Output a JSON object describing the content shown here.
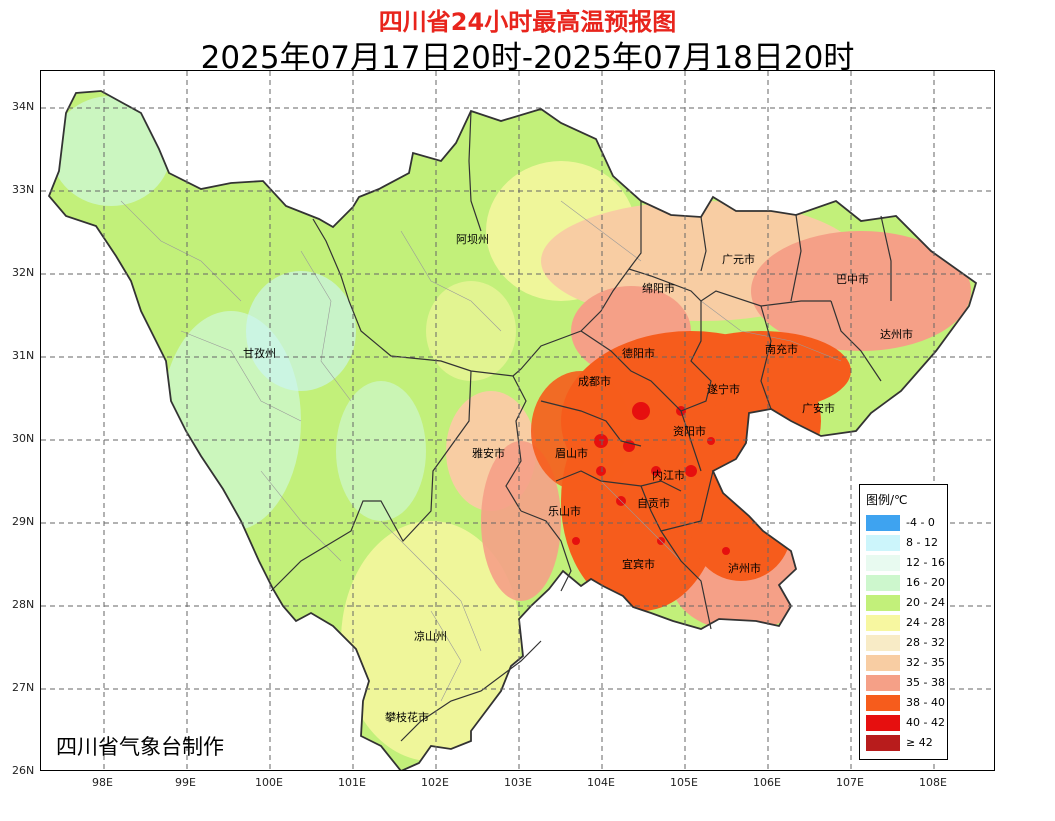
{
  "title": "四川省24小时最高温预报图",
  "subtitle": "2025年07月17日20时-2025年07月18日20时",
  "credit": "四川省气象台制作",
  "axes": {
    "lat_labels": [
      "34N",
      "33N",
      "32N",
      "31N",
      "30N",
      "29N",
      "28N",
      "27N",
      "26N"
    ],
    "lon_labels": [
      "98E",
      "99E",
      "100E",
      "101E",
      "102E",
      "103E",
      "104E",
      "105E",
      "106E",
      "107E",
      "108E"
    ],
    "grid": "dashed"
  },
  "cities": [
    "阿坝州",
    "甘孜州",
    "广元市",
    "巴中市",
    "绵阳市",
    "达州市",
    "德阳市",
    "南充市",
    "成都市",
    "遂宁市",
    "广安市",
    "资阳市",
    "雅安市",
    "眉山市",
    "内江市",
    "乐山市",
    "自贡市",
    "宜宾市",
    "泸州市",
    "凉山州",
    "攀枝花市"
  ],
  "legend": {
    "title": "图例/℃",
    "items": [
      {
        "label": "-4 - 0",
        "color": "#3ea3f0"
      },
      {
        "label": "8 - 12",
        "color": "#ccf5fb"
      },
      {
        "label": "12 - 16",
        "color": "#e8faf0"
      },
      {
        "label": "16 - 20",
        "color": "#cdf7cd"
      },
      {
        "label": "20 - 24",
        "color": "#c2f07a"
      },
      {
        "label": "24 - 28",
        "color": "#f7f7a0"
      },
      {
        "label": "28 - 32",
        "color": "#f8ebc6"
      },
      {
        "label": "32 - 35",
        "color": "#f8cda3"
      },
      {
        "label": "35 - 38",
        "color": "#f5a087"
      },
      {
        "label": "38 - 40",
        "color": "#f65c1c"
      },
      {
        "label": "40 - 42",
        "color": "#e60f0f"
      },
      {
        "label": "≥ 42",
        "color": "#b81c1c"
      }
    ]
  }
}
